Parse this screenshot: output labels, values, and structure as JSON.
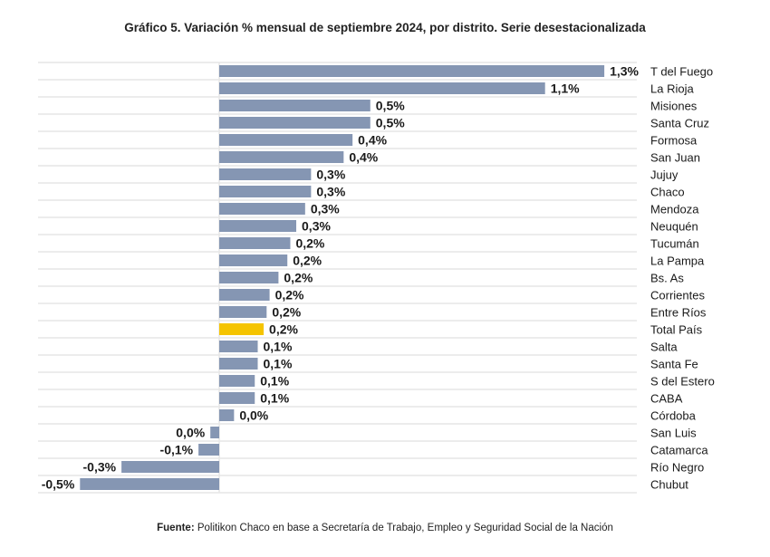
{
  "chart_data": {
    "type": "bar",
    "orientation": "horizontal",
    "title": "Gráfico 5. Variación % mensual de septiembre 2024, por distrito. Serie desestacionalizada",
    "source_label": "Fuente:",
    "source_text": "Politikon Chaco en base a Secretaría de Trabajo, Empleo y Seguridad Social de la Nación",
    "xlabel": "",
    "ylabel": "",
    "xlim": [
      -0.6,
      1.4
    ],
    "grid": true,
    "legend": "none",
    "categories": [
      "T del Fuego",
      "La Rioja",
      "Misiones",
      "Santa Cruz",
      "Formosa",
      "San Juan",
      "Jujuy",
      "Chaco",
      "Mendoza",
      "Neuquén",
      "Tucumán",
      "La Pampa",
      "Bs. As",
      "Corrientes",
      "Entre Ríos",
      "Total País",
      "Salta",
      "Santa Fe",
      "S del Estero",
      "CABA",
      "Córdoba",
      "San Luis",
      "Catamarca",
      "Río Negro",
      "Chubut"
    ],
    "values": [
      1.3,
      1.1,
      0.51,
      0.51,
      0.45,
      0.42,
      0.31,
      0.31,
      0.29,
      0.26,
      0.24,
      0.23,
      0.2,
      0.17,
      0.16,
      0.15,
      0.13,
      0.13,
      0.12,
      0.12,
      0.05,
      -0.03,
      -0.07,
      -0.33,
      -0.47
    ],
    "labels": [
      "1,3%",
      "1,1%",
      "0,5%",
      "0,5%",
      "0,4%",
      "0,4%",
      "0,3%",
      "0,3%",
      "0,3%",
      "0,3%",
      "0,2%",
      "0,2%",
      "0,2%",
      "0,2%",
      "0,2%",
      "0,2%",
      "0,1%",
      "0,1%",
      "0,1%",
      "0,1%",
      "0,0%",
      "0,0%",
      "-0,1%",
      "-0,3%",
      "-0,5%"
    ],
    "highlight": "Total País",
    "colors": {
      "bar": "#8596b3",
      "highlight": "#f5c400",
      "grid": "#e6e6e6"
    }
  }
}
